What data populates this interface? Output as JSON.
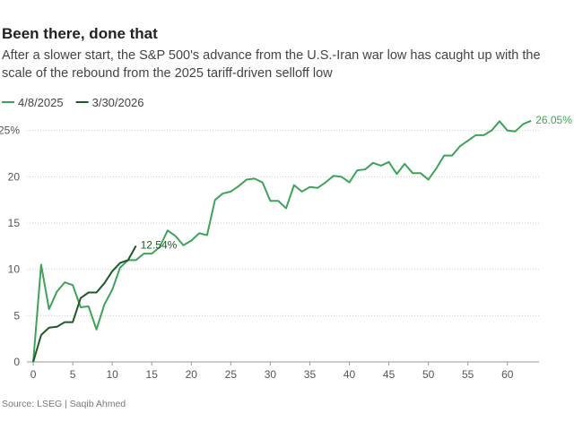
{
  "chart_data": {
    "type": "line",
    "title": "Been there, done that",
    "subtitle": "After a slower start, the S&P 500's advance from the U.S.-Iran war low has caught up with the scale of the rebound from the 2025 tariff-driven selloff low",
    "source": "Source: LSEG | Saqib Ahmed",
    "xlim": [
      -0.8,
      64
    ],
    "ylim": [
      0,
      27
    ],
    "xticks": [
      0,
      5,
      10,
      15,
      20,
      25,
      30,
      35,
      40,
      45,
      50,
      55,
      60
    ],
    "yticks": [
      0,
      5,
      10,
      15,
      20,
      {
        "value": 25,
        "label": "25%"
      }
    ],
    "grid": true,
    "series": [
      {
        "name": "4/8/2025",
        "color": "#3aa655",
        "x": [
          0,
          1,
          2,
          3,
          4,
          5,
          6,
          7,
          8,
          9,
          10,
          11,
          12,
          13,
          14,
          15,
          16,
          17,
          18,
          19,
          20,
          21,
          22,
          23,
          24,
          25,
          26,
          27,
          28,
          29,
          30,
          31,
          32,
          33,
          34,
          35,
          36,
          37,
          38,
          39,
          40,
          41,
          42,
          43,
          44,
          45,
          46,
          47,
          48,
          49,
          50,
          51,
          52,
          53,
          54,
          55,
          56,
          57,
          58,
          59,
          60,
          61,
          62,
          63
        ],
        "values": [
          0,
          10.5,
          5.7,
          7.6,
          8.6,
          8.3,
          5.9,
          6.0,
          3.5,
          6.2,
          7.8,
          10.2,
          11.0,
          11.0,
          11.7,
          11.7,
          12.4,
          14.2,
          13.6,
          12.6,
          13.1,
          13.9,
          13.7,
          17.5,
          18.2,
          18.4,
          19.0,
          19.7,
          19.8,
          19.4,
          17.4,
          17.4,
          16.6,
          19.1,
          18.4,
          18.9,
          18.8,
          19.4,
          20.1,
          20.0,
          19.4,
          20.7,
          20.8,
          21.5,
          21.2,
          21.6,
          20.3,
          21.4,
          20.4,
          20.4,
          19.7,
          20.9,
          22.3,
          22.3,
          23.3,
          23.9,
          24.5,
          24.5,
          25.0,
          26.0,
          25.0,
          24.9,
          25.7,
          26.05
        ],
        "value_labels": [
          null,
          null,
          null,
          null,
          null,
          null,
          null,
          null,
          null,
          null,
          null,
          null,
          null,
          null,
          null,
          null,
          null,
          null,
          null,
          null,
          null,
          null,
          null,
          null,
          null,
          null,
          null,
          null,
          null,
          null,
          null,
          null,
          null,
          null,
          null,
          null,
          null,
          null,
          null,
          null,
          null,
          null,
          null,
          null,
          null,
          null,
          null,
          null,
          null,
          null,
          null,
          null,
          null,
          null,
          null,
          null,
          null,
          null,
          null,
          null,
          null,
          null,
          null,
          "26.05%"
        ]
      },
      {
        "name": "3/30/2026",
        "color": "#1d5a27",
        "x": [
          0,
          1,
          2,
          3,
          4,
          5,
          6,
          7,
          8,
          9,
          10,
          11,
          12,
          13
        ],
        "values": [
          0,
          2.9,
          3.7,
          3.8,
          4.3,
          4.3,
          6.9,
          7.5,
          7.5,
          8.5,
          9.8,
          10.7,
          11.0,
          12.54
        ],
        "value_labels": [
          null,
          null,
          null,
          null,
          null,
          null,
          null,
          null,
          null,
          null,
          null,
          null,
          null,
          "12.54%"
        ]
      }
    ]
  }
}
